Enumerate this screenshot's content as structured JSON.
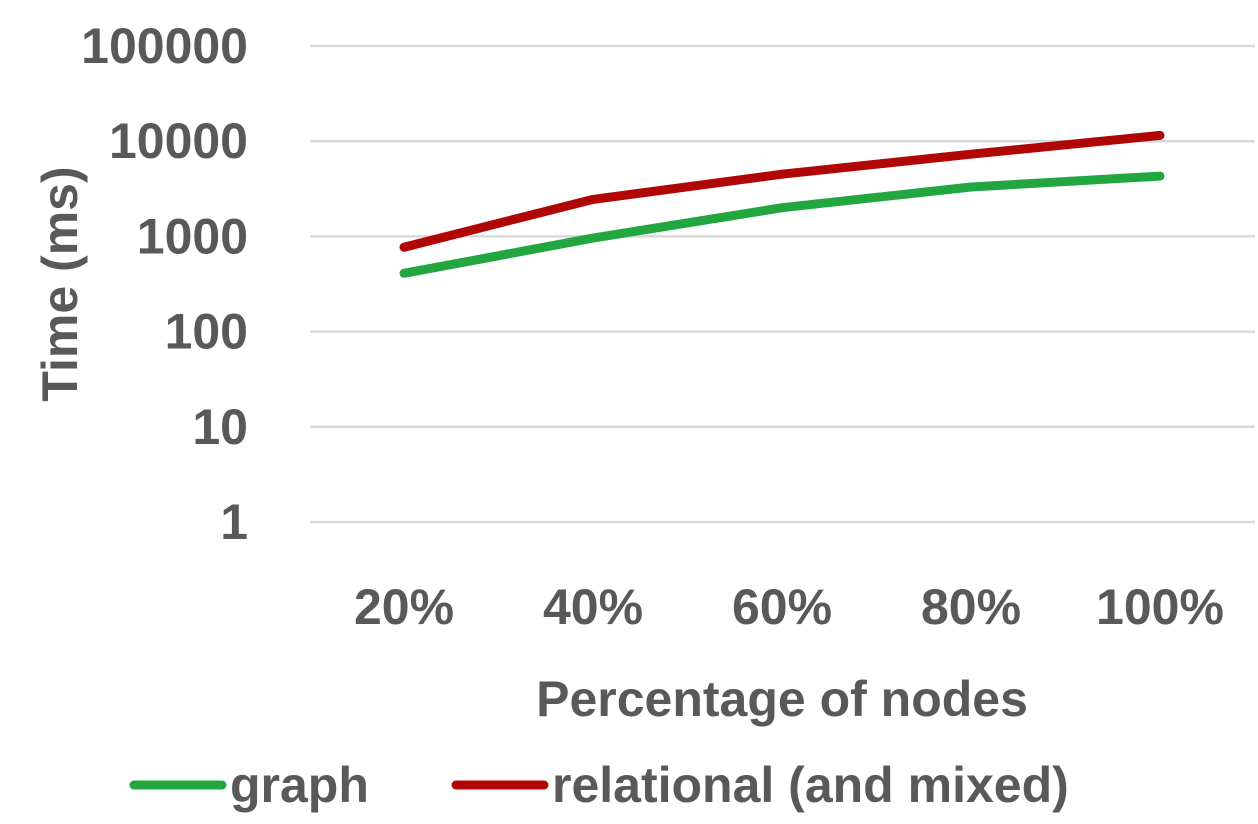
{
  "chart_data": {
    "type": "line",
    "title": "",
    "xlabel": "Percentage of nodes",
    "ylabel": "Time (ms)",
    "yscale": "log",
    "ylim": [
      1,
      100000
    ],
    "yticks": [
      1,
      10,
      100,
      1000,
      10000,
      100000
    ],
    "ytick_labels": [
      "1",
      "10",
      "100",
      "1000",
      "10000",
      "100000"
    ],
    "categories": [
      "20%",
      "40%",
      "60%",
      "80%",
      "100%"
    ],
    "grid": true,
    "legend_position": "bottom",
    "series": [
      {
        "name": "graph",
        "color": "#22a640",
        "values": [
          410,
          960,
          2000,
          3300,
          4300
        ]
      },
      {
        "name": "relational (and mixed)",
        "color": "#b00606",
        "values": [
          770,
          2450,
          4500,
          7300,
          11500
        ]
      }
    ]
  }
}
